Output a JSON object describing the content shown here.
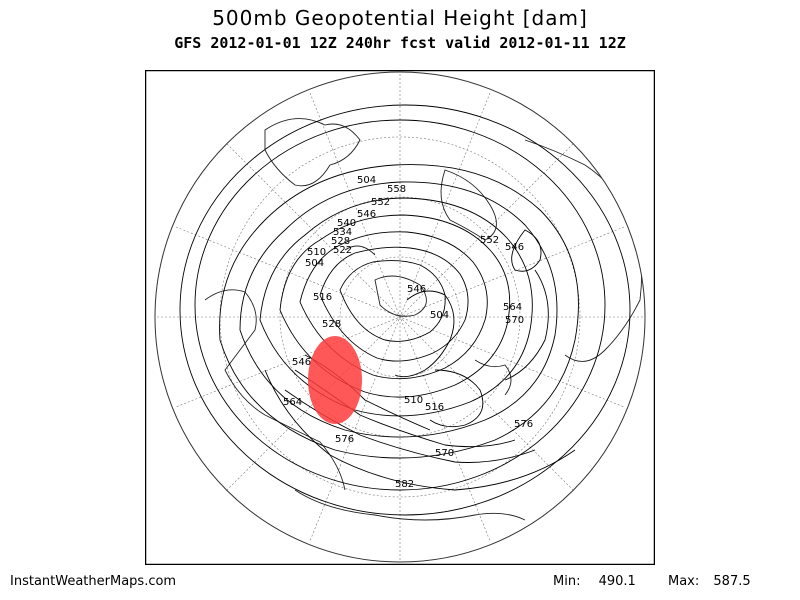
{
  "header": {
    "title": "500mb Geopotential Height [dam]",
    "subtitle": "GFS 2012-01-01 12Z 240hr fcst valid 2012-01-11 12Z"
  },
  "map": {
    "projection": "north polar stereographic",
    "field": "500mb geopotential height",
    "contour_labels": [
      "504",
      "558",
      "552",
      "546",
      "540",
      "534",
      "528",
      "522",
      "510",
      "504",
      "516",
      "528",
      "546",
      "564",
      "576",
      "546",
      "504",
      "510",
      "516",
      "570",
      "576",
      "552",
      "546",
      "564",
      "570",
      "582"
    ],
    "highlight_color": "#ff3b3b"
  },
  "footer": {
    "source": "InstantWeatherMaps.com",
    "min_label": "Min:",
    "min_value": "490.1",
    "max_label": "Max:",
    "max_value": "587.5"
  }
}
